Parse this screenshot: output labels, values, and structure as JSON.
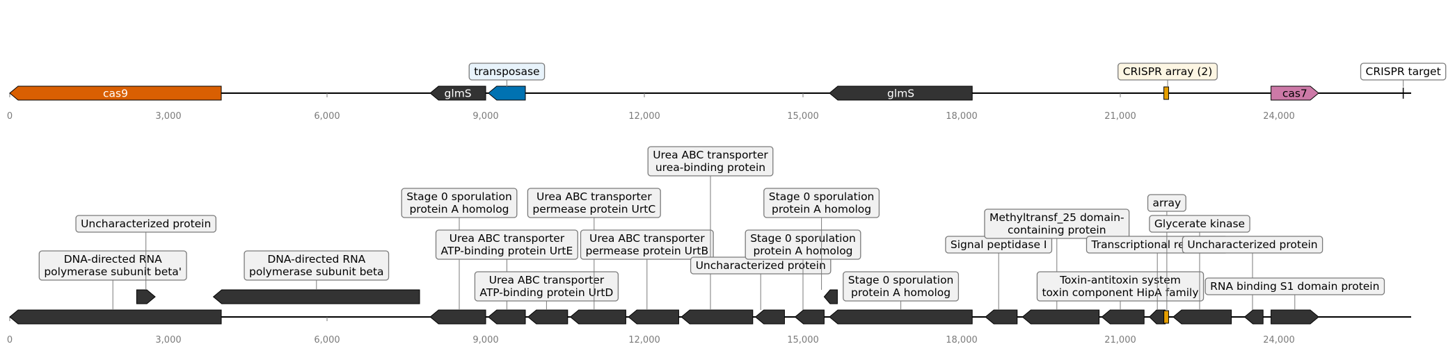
{
  "colors": {
    "cas9": "#d95f02",
    "glmS": "#333333",
    "transposase": "#0072b2",
    "crispr_array": "#e69f00",
    "cas7": "#cc79a7",
    "default_gene": "#333333",
    "axis": "#000000",
    "tick_label": "#7a7a7a",
    "label_box_fill": "#f1f1f1",
    "label_box_fill_transposase": "#e8f3fb",
    "label_box_fill_array": "#fdf6e3",
    "label_box_fill_target": "#ffffff"
  },
  "tracks": {
    "top": {
      "axis_max": 26500,
      "tick_labels": [
        "0",
        "3,000",
        "6,000",
        "9,000",
        "12,000",
        "15,000",
        "18,000",
        "21,000",
        "24,000"
      ],
      "features": [
        {
          "name": "cas9",
          "start": 0,
          "end": 4000,
          "strand": -1,
          "color_key": "cas9",
          "label": "cas9",
          "label_inside": true
        },
        {
          "name": "glmS",
          "start": 7950,
          "end": 9000,
          "strand": -1,
          "color_key": "glmS",
          "label": "glmS",
          "label_inside": true
        },
        {
          "name": "transposase",
          "start": 9050,
          "end": 9750,
          "strand": -1,
          "color_key": "transposase",
          "label": "transposase",
          "label_inside": false
        },
        {
          "name": "glmS-2",
          "start": 15500,
          "end": 18200,
          "strand": -1,
          "color_key": "glmS",
          "label": "glmS",
          "label_inside": true
        },
        {
          "name": "crispr-array",
          "start": 21850,
          "end": 21940,
          "strand": 0,
          "color_key": "crispr_array",
          "label": "CRISPR array (2)",
          "label_inside": false
        },
        {
          "name": "cas7",
          "start": 23850,
          "end": 24750,
          "strand": 1,
          "color_key": "cas7",
          "label": "cas7",
          "label_inside": true
        },
        {
          "name": "crispr-target",
          "start": 26350,
          "end": 26350,
          "strand": 0,
          "color_key": "default_gene",
          "label": "CRISPR target",
          "label_inside": false
        }
      ]
    },
    "bottom": {
      "axis_max": 26500,
      "tick_labels": [
        "0",
        "3,000",
        "6,000",
        "9,000",
        "12,000",
        "15,000",
        "18,000",
        "21,000",
        "24,000"
      ],
      "genes": [
        {
          "start": 0,
          "end": 4000,
          "strand": -1,
          "label": "DNA-directed RNA\npolymerase subunit beta'",
          "label_pos": 1950,
          "label_level": 1
        },
        {
          "start": 2400,
          "end": 2750,
          "strand": 1,
          "label": "Uncharacterized protein",
          "label_pos": 2575,
          "label_level": 3
        },
        {
          "start": 3850,
          "end": 7750,
          "strand": -1,
          "label": "DNA-directed RNA\npolymerase subunit beta",
          "label_pos": 5800,
          "label_level": 1
        },
        {
          "start": 7950,
          "end": 9000,
          "strand": -1,
          "label": "Stage 0 sporulation\nprotein A homolog",
          "label_pos": 8500,
          "label_level": 4
        },
        {
          "start": 9050,
          "end": 9750,
          "strand": -1,
          "label": "Urea ABC transporter\nATP-binding protein UrtE",
          "label_pos": 9400,
          "label_level": 2
        },
        {
          "start": 9800,
          "end": 10550,
          "strand": -1,
          "label": "Urea ABC transporter\nATP-binding protein UrtD",
          "label_pos": 10150,
          "label_level": 0
        },
        {
          "start": 10600,
          "end": 11650,
          "strand": -1,
          "label": "Urea ABC transporter\npermease protein UrtC",
          "label_pos": 11050,
          "label_level": 4
        },
        {
          "start": 11700,
          "end": 12650,
          "strand": -1,
          "label": "Urea ABC transporter\npermease protein UrtB",
          "label_pos": 12050,
          "label_level": 2
        },
        {
          "start": 12700,
          "end": 14050,
          "strand": -1,
          "label": "Urea ABC transporter\nurea-binding protein",
          "label_pos": 13250,
          "label_level": 5
        },
        {
          "start": 14100,
          "end": 14650,
          "strand": -1,
          "label": "Uncharacterized protein",
          "label_pos": 14200,
          "label_level": 1
        },
        {
          "start": 14850,
          "end": 15400,
          "strand": -1,
          "label": "Stage 0 sporulation\nprotein A homolog",
          "label_pos": 15000,
          "label_level": 2
        },
        {
          "start": 15400,
          "end": 15650,
          "strand": -1,
          "label": "Stage 0 sporulation\nprotein A homolog",
          "label_pos": 15350,
          "label_level": 4
        },
        {
          "start": 15500,
          "end": 18200,
          "strand": -1,
          "label": "Stage 0 sporulation\nprotein A homolog",
          "label_pos": 16850,
          "label_level": 0
        },
        {
          "start": 18450,
          "end": 19050,
          "strand": -1,
          "label": "Signal peptidase I",
          "label_pos": 18700,
          "label_level": 2
        },
        {
          "start": 19150,
          "end": 20600,
          "strand": -1,
          "label": "Methyltransf_25 domain-\ncontaining protein",
          "label_pos": 19800,
          "label_level": 3
        },
        {
          "start": 20650,
          "end": 21450,
          "strand": -1,
          "label": "Toxin-antitoxin system\ntoxin component HipA family",
          "label_pos": 21000,
          "label_level": 0
        },
        {
          "start": 21550,
          "end": 21850,
          "strand": -1,
          "label": "Transcriptional regulator",
          "label_pos": 21700,
          "label_level": 2
        },
        {
          "start": 21850,
          "end": 21940,
          "strand": -1,
          "label": "array",
          "label_pos": 21880,
          "label_level": 4
        },
        {
          "start": 22000,
          "end": 23100,
          "strand": -1,
          "label": "Glycerate kinase",
          "label_pos": 22500,
          "label_level": 3
        },
        {
          "start": 23350,
          "end": 23700,
          "strand": -1,
          "label": "Uncharacterized protein",
          "label_pos": 23500,
          "label_level": 2
        },
        {
          "start": 23850,
          "end": 24750,
          "strand": 1,
          "label": "RNA binding S1 domain protein",
          "label_pos": 24300,
          "label_level": 0
        }
      ]
    }
  }
}
